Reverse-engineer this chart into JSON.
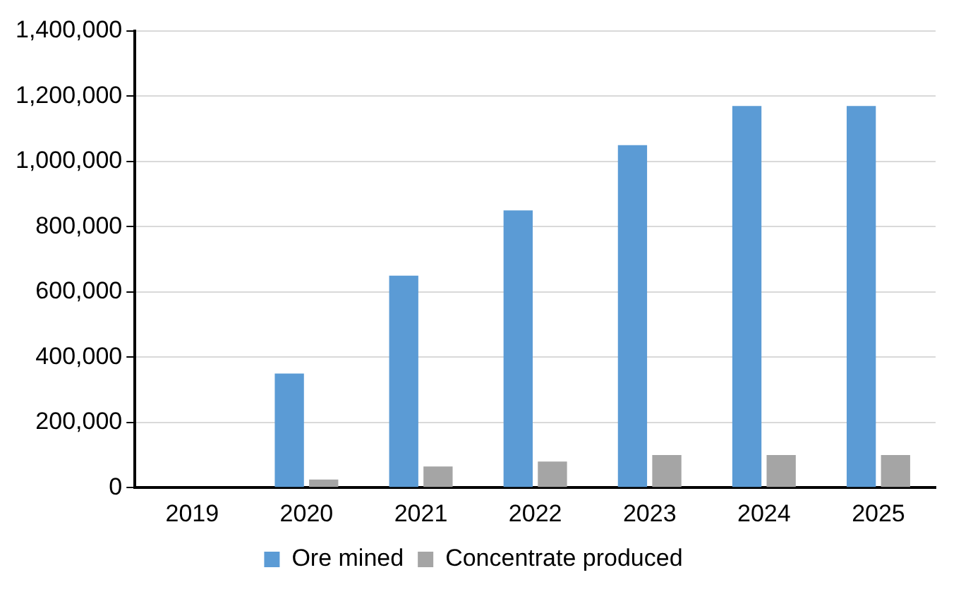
{
  "chart_data": {
    "type": "bar",
    "categories": [
      "2019",
      "2020",
      "2021",
      "2022",
      "2023",
      "2024",
      "2025"
    ],
    "series": [
      {
        "name": "Ore mined",
        "color": "#5b9bd5",
        "values": [
          0,
          350000,
          650000,
          850000,
          1050000,
          1170000,
          1170000
        ]
      },
      {
        "name": "Concentrate produced",
        "color": "#a5a5a5",
        "values": [
          0,
          25000,
          65000,
          80000,
          100000,
          100000,
          100000
        ]
      }
    ],
    "ylim": [
      0,
      1400000
    ],
    "yticks": [
      0,
      {
        "value": 200000,
        "label": "200,000"
      },
      {
        "value": 400000,
        "label": "400,000"
      },
      {
        "value": 600000,
        "label": "600,000"
      },
      {
        "value": 800000,
        "label": "800,000"
      },
      {
        "value": 1000000,
        "label": "1,000,000"
      },
      {
        "value": 1200000,
        "label": "1,200,000"
      },
      {
        "value": 1400000,
        "label": "1,400,000"
      }
    ],
    "grid": "y",
    "legend": "bottom"
  }
}
